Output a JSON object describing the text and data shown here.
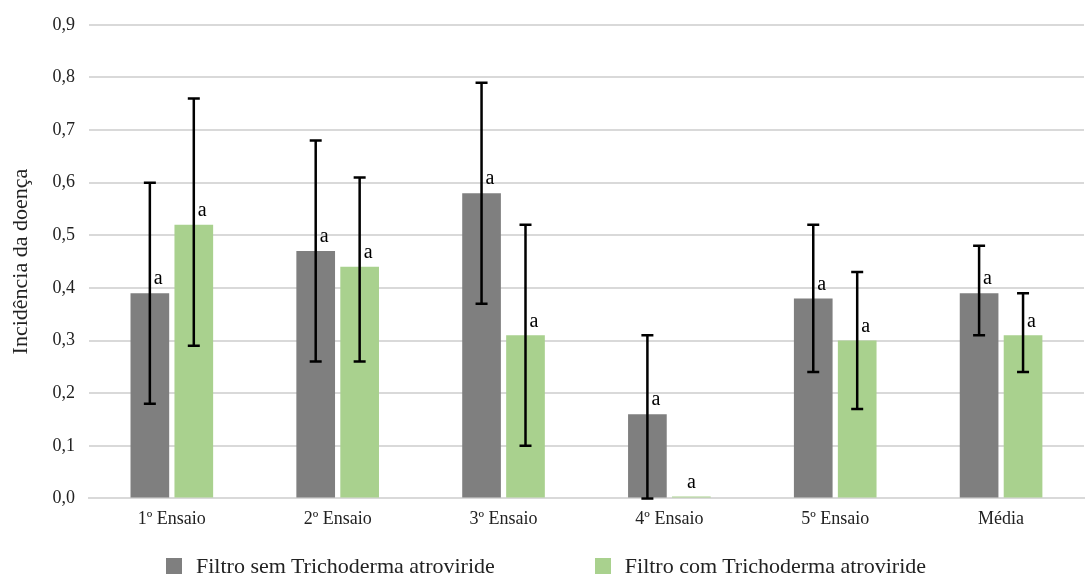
{
  "chart_data": {
    "type": "bar",
    "ylabel": "Incidência da doença",
    "categories": [
      "1º Ensaio",
      "2º Ensaio",
      "3º Ensaio",
      "4º Ensaio",
      "5º Ensaio",
      "Média"
    ],
    "series": [
      {
        "name": "Filtro sem Trichoderma atroviride",
        "color": "#7f7f7f",
        "values": [
          0.39,
          0.47,
          0.58,
          0.16,
          0.38,
          0.39
        ],
        "errors": [
          [
            0.18,
            0.6
          ],
          [
            0.26,
            0.68
          ],
          [
            0.37,
            0.79
          ],
          [
            0,
            0.31
          ],
          [
            0.24,
            0.52
          ],
          [
            0.31,
            0.48
          ]
        ],
        "value_labels": [
          "a",
          "a",
          "a",
          "a",
          "a",
          "a"
        ]
      },
      {
        "name": "Filtro com Trichoderma atroviride",
        "color": "#a9d18e",
        "values": [
          0.52,
          0.44,
          0.31,
          0,
          0.3,
          0.31
        ],
        "errors": [
          [
            0.29,
            0.76
          ],
          [
            0.26,
            0.61
          ],
          [
            0.1,
            0.52
          ],
          null,
          [
            0.17,
            0.43
          ],
          [
            0.24,
            0.39
          ]
        ],
        "value_labels": [
          "a",
          "a",
          "a",
          "a",
          "a",
          "a"
        ]
      }
    ],
    "ylim": [
      0,
      0.9
    ],
    "yticks": [
      {
        "value": 0,
        "label": "0,0"
      },
      {
        "value": 0.1,
        "label": "0,1"
      },
      {
        "value": 0.2,
        "label": "0,2"
      },
      {
        "value": 0.3,
        "label": "0,3"
      },
      {
        "value": 0.4,
        "label": "0,4"
      },
      {
        "value": 0.5,
        "label": "0,5"
      },
      {
        "value": 0.6,
        "label": "0,6"
      },
      {
        "value": 0.7,
        "label": "0,7"
      },
      {
        "value": 0.8,
        "label": "0,8"
      },
      {
        "value": 0.9,
        "label": "0,9"
      }
    ],
    "grid": "y",
    "legend": "bottom"
  }
}
